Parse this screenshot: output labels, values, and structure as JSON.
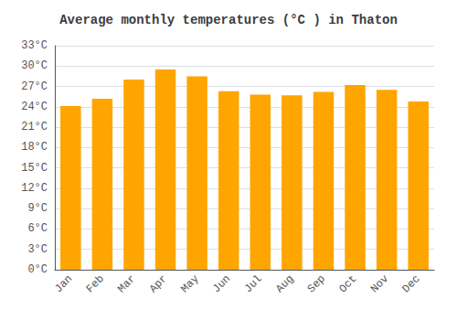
{
  "chart_data": {
    "type": "bar",
    "title": "Average monthly temperatures (°C ) in Thaton",
    "categories": [
      "Jan",
      "Feb",
      "Mar",
      "Apr",
      "May",
      "Jun",
      "Jul",
      "Aug",
      "Sep",
      "Oct",
      "Nov",
      "Dec"
    ],
    "values": [
      24.1,
      25.2,
      28.0,
      29.5,
      28.5,
      26.3,
      25.8,
      25.7,
      26.2,
      27.2,
      26.5,
      24.8
    ],
    "color": "#FFA500",
    "ylim": [
      0,
      33
    ],
    "yticks": [
      {
        "value": 0,
        "label": "0°C"
      },
      {
        "value": 3,
        "label": "3°C"
      },
      {
        "value": 6,
        "label": "6°C"
      },
      {
        "value": 9,
        "label": "9°C"
      },
      {
        "value": 12,
        "label": "12°C"
      },
      {
        "value": 15,
        "label": "15°C"
      },
      {
        "value": 18,
        "label": "18°C"
      },
      {
        "value": 21,
        "label": "21°C"
      },
      {
        "value": 24,
        "label": "24°C"
      },
      {
        "value": 27,
        "label": "27°C"
      },
      {
        "value": 30,
        "label": "30°C"
      },
      {
        "value": 33,
        "label": "33°C"
      }
    ],
    "grid": true
  }
}
